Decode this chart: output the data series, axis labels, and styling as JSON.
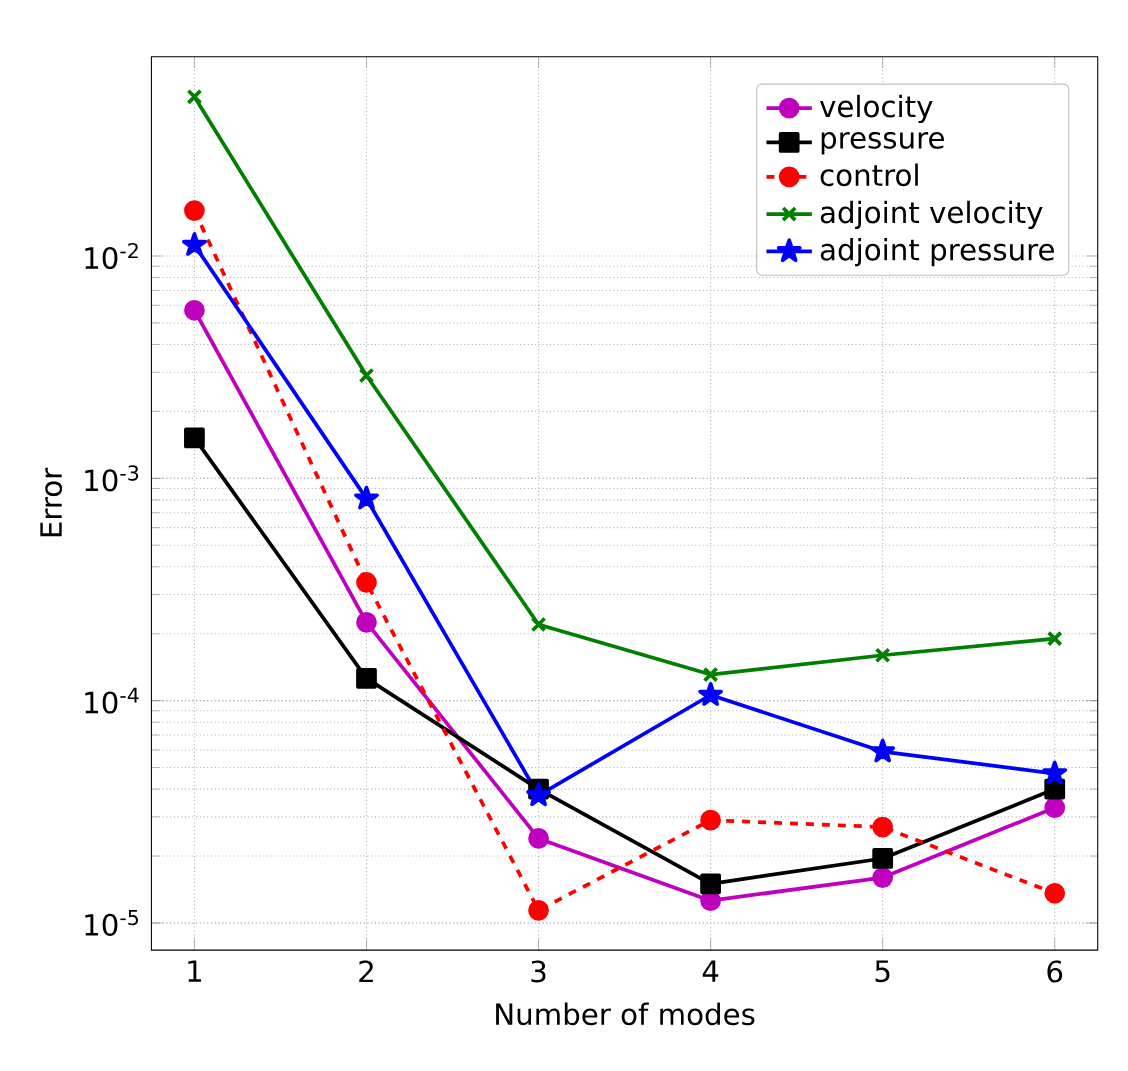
{
  "chart_data": {
    "type": "line",
    "xlabel": "Number of modes",
    "ylabel": "Error",
    "x": [
      1,
      2,
      3,
      4,
      5,
      6
    ],
    "series": [
      {
        "name": "velocity",
        "color": "#bf00bf",
        "marker": "circle",
        "line_style": "solid",
        "values": [
          0.0057,
          0.000225,
          2.4e-05,
          1.26e-05,
          1.6e-05,
          3.3e-05
        ]
      },
      {
        "name": "pressure",
        "color": "#000000",
        "marker": "square",
        "line_style": "solid",
        "values": [
          0.00152,
          0.000126,
          4e-05,
          1.5e-05,
          1.95e-05,
          4e-05
        ]
      },
      {
        "name": "control",
        "color": "#ff0000",
        "marker": "circle",
        "line_style": "dashed",
        "values": [
          0.016,
          0.00034,
          1.14e-05,
          2.9e-05,
          2.7e-05,
          1.36e-05
        ]
      },
      {
        "name": "adjoint velocity",
        "color": "#008000",
        "marker": "cross",
        "line_style": "solid",
        "values": [
          0.052,
          0.0029,
          0.00022,
          0.000131,
          0.00016,
          0.00019
        ]
      },
      {
        "name": "adjoint pressure",
        "color": "#0000ff",
        "marker": "star",
        "line_style": "solid",
        "values": [
          0.0112,
          0.00081,
          3.75e-05,
          0.000106,
          5.9e-05,
          4.7e-05
        ]
      }
    ],
    "log": "y",
    "grid": true,
    "legend": "top right",
    "xlim": [
      0.75,
      6.25
    ],
    "ylim": [
      7.55e-06,
      0.0787
    ],
    "xticks": [
      1,
      2,
      3,
      4,
      5,
      6
    ],
    "yticks": [
      {
        "value": 1e-05,
        "label": "10$^{-5}$"
      },
      {
        "value": 0.0001,
        "label": "10$^{-4}$"
      },
      {
        "value": 0.001,
        "label": "10$^{-3}$"
      },
      {
        "value": 0.01,
        "label": "10$^{-2}$"
      }
    ]
  }
}
